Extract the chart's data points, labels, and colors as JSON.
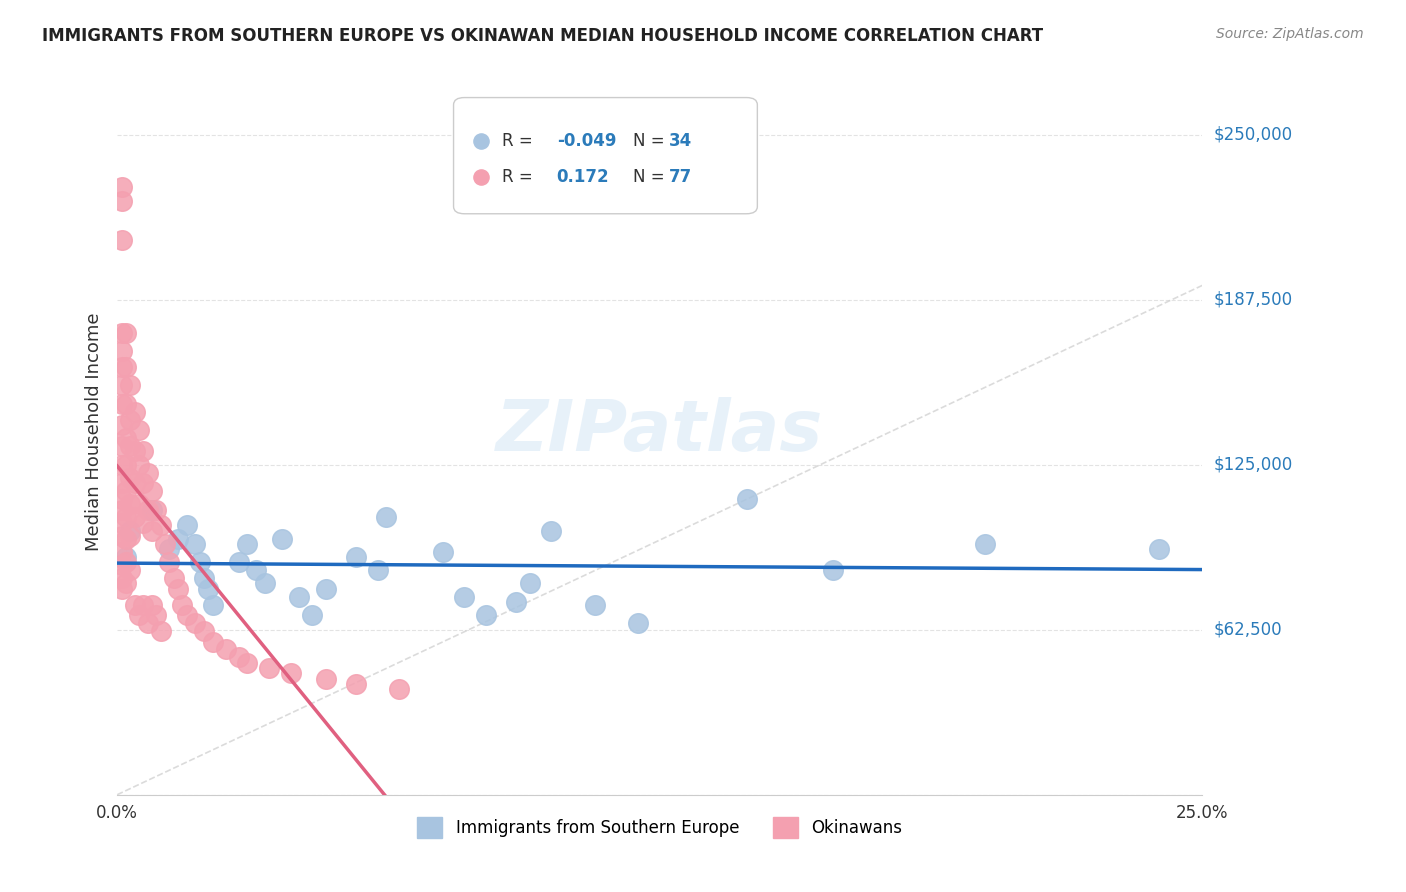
{
  "title": "IMMIGRANTS FROM SOUTHERN EUROPE VS OKINAWAN MEDIAN HOUSEHOLD INCOME CORRELATION CHART",
  "source": "Source: ZipAtlas.com",
  "xlabel_bottom": "",
  "ylabel": "Median Household Income",
  "xmin": 0.0,
  "xmax": 0.25,
  "ymin": 0,
  "ymax": 275000,
  "yticks": [
    0,
    62500,
    125000,
    187500,
    250000
  ],
  "ytick_labels": [
    "",
    "$62,500",
    "$125,000",
    "$187,500",
    "$250,000"
  ],
  "xticks": [
    0.0,
    0.05,
    0.1,
    0.15,
    0.2,
    0.25
  ],
  "xtick_labels": [
    "0.0%",
    "",
    "",
    "",
    "",
    "25.0%"
  ],
  "legend_r1": "R = -0.049",
  "legend_n1": "N = 34",
  "legend_r2": "R =  0.172",
  "legend_n2": "N = 77",
  "blue_color": "#a8c4e0",
  "pink_color": "#f4a0b0",
  "blue_line_color": "#1f6abf",
  "pink_line_color": "#e06080",
  "blue_scatter_x": [
    0.002,
    0.003,
    0.008,
    0.012,
    0.014,
    0.016,
    0.018,
    0.019,
    0.02,
    0.021,
    0.022,
    0.028,
    0.03,
    0.032,
    0.034,
    0.038,
    0.042,
    0.045,
    0.048,
    0.055,
    0.06,
    0.062,
    0.075,
    0.08,
    0.085,
    0.092,
    0.095,
    0.1,
    0.11,
    0.12,
    0.145,
    0.165,
    0.2,
    0.24
  ],
  "blue_scatter_y": [
    90000,
    100000,
    108000,
    93000,
    97000,
    102000,
    95000,
    88000,
    82000,
    78000,
    72000,
    88000,
    95000,
    85000,
    80000,
    97000,
    75000,
    68000,
    78000,
    90000,
    85000,
    105000,
    92000,
    75000,
    68000,
    73000,
    80000,
    100000,
    72000,
    65000,
    112000,
    85000,
    95000,
    93000
  ],
  "pink_scatter_x": [
    0.001,
    0.001,
    0.001,
    0.001,
    0.001,
    0.001,
    0.001,
    0.001,
    0.001,
    0.001,
    0.001,
    0.001,
    0.001,
    0.001,
    0.001,
    0.001,
    0.001,
    0.001,
    0.001,
    0.001,
    0.002,
    0.002,
    0.002,
    0.002,
    0.002,
    0.002,
    0.002,
    0.002,
    0.002,
    0.002,
    0.003,
    0.003,
    0.003,
    0.003,
    0.003,
    0.003,
    0.003,
    0.004,
    0.004,
    0.004,
    0.004,
    0.004,
    0.005,
    0.005,
    0.005,
    0.005,
    0.006,
    0.006,
    0.006,
    0.006,
    0.007,
    0.007,
    0.007,
    0.008,
    0.008,
    0.008,
    0.009,
    0.009,
    0.01,
    0.01,
    0.011,
    0.012,
    0.013,
    0.014,
    0.015,
    0.016,
    0.018,
    0.02,
    0.022,
    0.025,
    0.028,
    0.03,
    0.035,
    0.04,
    0.048,
    0.055,
    0.065
  ],
  "pink_scatter_y": [
    230000,
    225000,
    210000,
    175000,
    168000,
    162000,
    155000,
    148000,
    140000,
    132000,
    125000,
    118000,
    112000,
    108000,
    103000,
    98000,
    92000,
    87000,
    82000,
    78000,
    175000,
    162000,
    148000,
    135000,
    125000,
    115000,
    105000,
    97000,
    88000,
    80000,
    155000,
    142000,
    132000,
    120000,
    110000,
    98000,
    85000,
    145000,
    130000,
    118000,
    105000,
    72000,
    138000,
    125000,
    110000,
    68000,
    130000,
    118000,
    103000,
    72000,
    122000,
    108000,
    65000,
    115000,
    100000,
    72000,
    108000,
    68000,
    102000,
    62000,
    95000,
    88000,
    82000,
    78000,
    72000,
    68000,
    65000,
    62000,
    58000,
    55000,
    52000,
    50000,
    48000,
    46000,
    44000,
    42000,
    40000
  ],
  "watermark": "ZIPatlas",
  "bg_color": "#ffffff",
  "grid_color": "#dddddd"
}
